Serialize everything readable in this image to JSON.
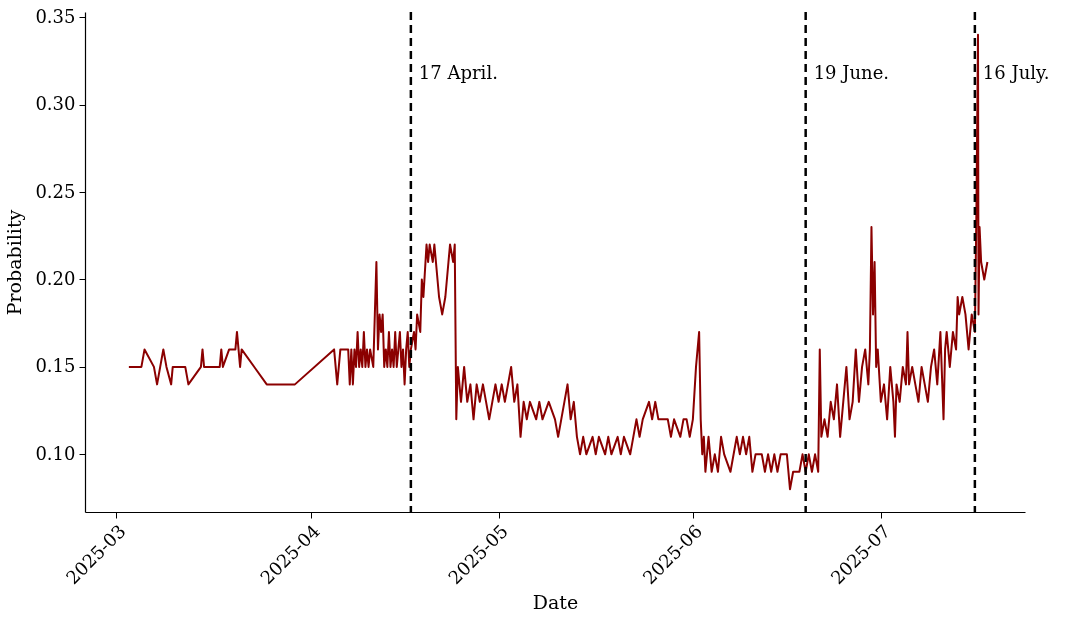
{
  "chart_data": {
    "type": "line",
    "xlabel": "Date",
    "ylabel": "Probability",
    "xlim": [
      "2025-02-24",
      "2025-07-24"
    ],
    "xticks": [
      {
        "value": "2025-03-01",
        "label": "2025-03"
      },
      {
        "value": "2025-04-01",
        "label": "2025-04"
      },
      {
        "value": "2025-05-01",
        "label": "2025-05"
      },
      {
        "value": "2025-06-01",
        "label": "2025-06"
      },
      {
        "value": "2025-07-01",
        "label": "2025-07"
      }
    ],
    "ylim": [
      0.067,
      0.353
    ],
    "yticks": [
      {
        "value": 0.1,
        "label": "0.10"
      },
      {
        "value": 0.15,
        "label": "0.15"
      },
      {
        "value": 0.2,
        "label": "0.20"
      },
      {
        "value": 0.25,
        "label": "0.25"
      },
      {
        "value": 0.3,
        "label": "0.30"
      },
      {
        "value": 0.35,
        "label": "0.35"
      }
    ],
    "line_style": "solid",
    "ref_lines": [
      {
        "axis": "x",
        "value": "2025-04-17",
        "label": "17 April.",
        "color": "#000000",
        "line_style": "dashed"
      },
      {
        "axis": "x",
        "value": "2025-06-19",
        "label": "19 June.",
        "color": "#000000",
        "line_style": "dashed"
      },
      {
        "axis": "x",
        "value": "2025-07-16",
        "label": "16 July.",
        "color": "#000000",
        "line_style": "dashed"
      }
    ],
    "series": [
      {
        "color": "#8b0000",
        "x": [
          "2025-03-03",
          "2025-03-05",
          "2025-03-05T12:00",
          "2025-03-07",
          "2025-03-07T12:00",
          "2025-03-08",
          "2025-03-08T12:00",
          "2025-03-09",
          "2025-03-09T18:00",
          "2025-03-10",
          "2025-03-12",
          "2025-03-12T12:00",
          "2025-03-14T12:00",
          "2025-03-14T18:00",
          "2025-03-15",
          "2025-03-17T12:00",
          "2025-03-17T18:00",
          "2025-03-18",
          "2025-03-19",
          "2025-03-20",
          "2025-03-20T06:00",
          "2025-03-20T18:00",
          "2025-03-21",
          "2025-03-25",
          "2025-03-29T12:00",
          "2025-04-04T18:00",
          "2025-04-05T06:00",
          "2025-04-05T18:00",
          "2025-04-07",
          "2025-04-07T06:00",
          "2025-04-07T12:00",
          "2025-04-07T18:00",
          "2025-04-08",
          "2025-04-08T06:00",
          "2025-04-08T12:00",
          "2025-04-08T18:00",
          "2025-04-09",
          "2025-04-09T06:00",
          "2025-04-09T12:00",
          "2025-04-09T18:00",
          "2025-04-10",
          "2025-04-10T06:00",
          "2025-04-10T12:00",
          "2025-04-11",
          "2025-04-11T06:00",
          "2025-04-11T12:00",
          "2025-04-11T18:00",
          "2025-04-12",
          "2025-04-12T06:00",
          "2025-04-12T12:00",
          "2025-04-12T18:00",
          "2025-04-13",
          "2025-04-13T06:00",
          "2025-04-13T12:00",
          "2025-04-13T18:00",
          "2025-04-14",
          "2025-04-14T06:00",
          "2025-04-14T12:00",
          "2025-04-14T18:00",
          "2025-04-15",
          "2025-04-15T06:00",
          "2025-04-15T12:00",
          "2025-04-15T18:00",
          "2025-04-16",
          "2025-04-16T06:00",
          "2025-04-16T12:00",
          "2025-04-16T18:00",
          "2025-04-17",
          "2025-04-17T12:00",
          "2025-04-17T18:00",
          "2025-04-18",
          "2025-04-18T12:00",
          "2025-04-18T18:00",
          "2025-04-19",
          "2025-04-19T12:00",
          "2025-04-19T18:00",
          "2025-04-20",
          "2025-04-20T12:00",
          "2025-04-20T18:00",
          "2025-04-21",
          "2025-04-21T12:00",
          "2025-04-22",
          "2025-04-22T12:00",
          "2025-04-23",
          "2025-04-23T06:00",
          "2025-04-23T18:00",
          "2025-04-24",
          "2025-04-24T06:00",
          "2025-04-24T12:00",
          "2025-04-25",
          "2025-04-25T12:00",
          "2025-04-26",
          "2025-04-26T12:00",
          "2025-04-27",
          "2025-04-27T12:00",
          "2025-04-28",
          "2025-04-28T12:00",
          "2025-04-29",
          "2025-04-29T12:00",
          "2025-04-30",
          "2025-04-30T12:00",
          "2025-05-01",
          "2025-05-01T12:00",
          "2025-05-02",
          "2025-05-02T12:00",
          "2025-05-03",
          "2025-05-03T12:00",
          "2025-05-04",
          "2025-05-04T12:00",
          "2025-05-05",
          "2025-05-05T12:00",
          "2025-05-06",
          "2025-05-07",
          "2025-05-07T12:00",
          "2025-05-08",
          "2025-05-09",
          "2025-05-10",
          "2025-05-10T12:00",
          "2025-05-11",
          "2025-05-11T12:00",
          "2025-05-12",
          "2025-05-12T12:00",
          "2025-05-13",
          "2025-05-13T12:00",
          "2025-05-14",
          "2025-05-14T12:00",
          "2025-05-15",
          "2025-05-16",
          "2025-05-16T12:00",
          "2025-05-17",
          "2025-05-18",
          "2025-05-18T12:00",
          "2025-05-19",
          "2025-05-20",
          "2025-05-20T12:00",
          "2025-05-21",
          "2025-05-22",
          "2025-05-22T12:00",
          "2025-05-23",
          "2025-05-23T12:00",
          "2025-05-24",
          "2025-05-25",
          "2025-05-25T12:00",
          "2025-05-26",
          "2025-05-26T12:00",
          "2025-05-28",
          "2025-05-28T12:00",
          "2025-05-29",
          "2025-05-30",
          "2025-05-30T12:00",
          "2025-05-31",
          "2025-05-31T12:00",
          "2025-06-01",
          "2025-06-01T12:00",
          "2025-06-02",
          "2025-06-02T06:00",
          "2025-06-02T12:00",
          "2025-06-02T18:00",
          "2025-06-03",
          "2025-06-03T12:00",
          "2025-06-04",
          "2025-06-04T12:00",
          "2025-06-05",
          "2025-06-05T12:00",
          "2025-06-06",
          "2025-06-07",
          "2025-06-08",
          "2025-06-08T12:00",
          "2025-06-09",
          "2025-06-09T12:00",
          "2025-06-10",
          "2025-06-10T12:00",
          "2025-06-11",
          "2025-06-12",
          "2025-06-12T12:00",
          "2025-06-13",
          "2025-06-13T12:00",
          "2025-06-14",
          "2025-06-14T12:00",
          "2025-06-15",
          "2025-06-16",
          "2025-06-16T12:00",
          "2025-06-17",
          "2025-06-18",
          "2025-06-18T12:00",
          "2025-06-19",
          "2025-06-19T12:00",
          "2025-06-20",
          "2025-06-20T12:00",
          "2025-06-21",
          "2025-06-21T06:00",
          "2025-06-21T12:00",
          "2025-06-22",
          "2025-06-22T12:00",
          "2025-06-23",
          "2025-06-23T12:00",
          "2025-06-24",
          "2025-06-24T12:00",
          "2025-06-25",
          "2025-06-25T12:00",
          "2025-06-26",
          "2025-06-26T12:00",
          "2025-06-27",
          "2025-06-27T12:00",
          "2025-06-28",
          "2025-06-28T12:00",
          "2025-06-29",
          "2025-06-29T06:00",
          "2025-06-29T12:00",
          "2025-06-29T18:00",
          "2025-06-30",
          "2025-06-30T06:00",
          "2025-06-30T12:00",
          "2025-07-01",
          "2025-07-01T12:00",
          "2025-07-02",
          "2025-07-02T12:00",
          "2025-07-03",
          "2025-07-03T06:00",
          "2025-07-03T12:00",
          "2025-07-04",
          "2025-07-04T12:00",
          "2025-07-05",
          "2025-07-05T06:00",
          "2025-07-05T12:00",
          "2025-07-06",
          "2025-07-06T12:00",
          "2025-07-07",
          "2025-07-07T12:00",
          "2025-07-08",
          "2025-07-08T12:00",
          "2025-07-09",
          "2025-07-09T12:00",
          "2025-07-10",
          "2025-07-10T12:00",
          "2025-07-11",
          "2025-07-11T06:00",
          "2025-07-11T12:00",
          "2025-07-12",
          "2025-07-12T12:00",
          "2025-07-13",
          "2025-07-13T06:00",
          "2025-07-13T12:00",
          "2025-07-14",
          "2025-07-14T12:00",
          "2025-07-15",
          "2025-07-15T12:00",
          "2025-07-16",
          "2025-07-16T06:00",
          "2025-07-16T12:00",
          "2025-07-16T14:00",
          "2025-07-16T18:00",
          "2025-07-17",
          "2025-07-17T12:00",
          "2025-07-18"
        ],
        "values": [
          0.15,
          0.15,
          0.16,
          0.15,
          0.14,
          0.15,
          0.16,
          0.15,
          0.14,
          0.15,
          0.15,
          0.14,
          0.15,
          0.16,
          0.15,
          0.15,
          0.16,
          0.15,
          0.16,
          0.16,
          0.17,
          0.15,
          0.16,
          0.14,
          0.14,
          0.16,
          0.14,
          0.16,
          0.16,
          0.14,
          0.16,
          0.14,
          0.16,
          0.15,
          0.17,
          0.15,
          0.16,
          0.15,
          0.17,
          0.15,
          0.16,
          0.15,
          0.16,
          0.15,
          0.18,
          0.21,
          0.16,
          0.18,
          0.17,
          0.18,
          0.15,
          0.16,
          0.15,
          0.17,
          0.15,
          0.16,
          0.15,
          0.17,
          0.15,
          0.16,
          0.17,
          0.15,
          0.16,
          0.14,
          0.16,
          0.17,
          0.15,
          0.16,
          0.17,
          0.16,
          0.18,
          0.17,
          0.2,
          0.19,
          0.22,
          0.21,
          0.22,
          0.21,
          0.22,
          0.21,
          0.19,
          0.18,
          0.19,
          0.21,
          0.22,
          0.21,
          0.22,
          0.12,
          0.15,
          0.13,
          0.15,
          0.13,
          0.14,
          0.12,
          0.14,
          0.13,
          0.14,
          0.13,
          0.12,
          0.13,
          0.14,
          0.13,
          0.14,
          0.13,
          0.14,
          0.15,
          0.13,
          0.14,
          0.11,
          0.13,
          0.12,
          0.13,
          0.12,
          0.13,
          0.12,
          0.13,
          0.12,
          0.11,
          0.12,
          0.13,
          0.14,
          0.12,
          0.13,
          0.11,
          0.1,
          0.11,
          0.1,
          0.11,
          0.1,
          0.11,
          0.1,
          0.11,
          0.1,
          0.11,
          0.1,
          0.11,
          0.1,
          0.11,
          0.12,
          0.11,
          0.12,
          0.13,
          0.12,
          0.13,
          0.12,
          0.12,
          0.11,
          0.12,
          0.11,
          0.12,
          0.12,
          0.11,
          0.12,
          0.15,
          0.17,
          0.12,
          0.1,
          0.11,
          0.09,
          0.11,
          0.09,
          0.1,
          0.09,
          0.11,
          0.1,
          0.09,
          0.11,
          0.1,
          0.11,
          0.1,
          0.11,
          0.09,
          0.1,
          0.1,
          0.09,
          0.1,
          0.09,
          0.1,
          0.09,
          0.1,
          0.1,
          0.08,
          0.09,
          0.09,
          0.1,
          0.09,
          0.1,
          0.09,
          0.1,
          0.09,
          0.16,
          0.11,
          0.12,
          0.11,
          0.13,
          0.12,
          0.14,
          0.11,
          0.13,
          0.15,
          0.12,
          0.13,
          0.16,
          0.13,
          0.15,
          0.16,
          0.14,
          0.16,
          0.23,
          0.18,
          0.21,
          0.15,
          0.16,
          0.13,
          0.14,
          0.12,
          0.15,
          0.13,
          0.11,
          0.14,
          0.13,
          0.15,
          0.14,
          0.17,
          0.14,
          0.15,
          0.14,
          0.13,
          0.15,
          0.14,
          0.13,
          0.15,
          0.16,
          0.14,
          0.17,
          0.12,
          0.16,
          0.17,
          0.15,
          0.17,
          0.16,
          0.19,
          0.18,
          0.19,
          0.18,
          0.16,
          0.18,
          0.17,
          0.24,
          0.34,
          0.18,
          0.23,
          0.21,
          0.2,
          0.21
        ]
      }
    ]
  }
}
